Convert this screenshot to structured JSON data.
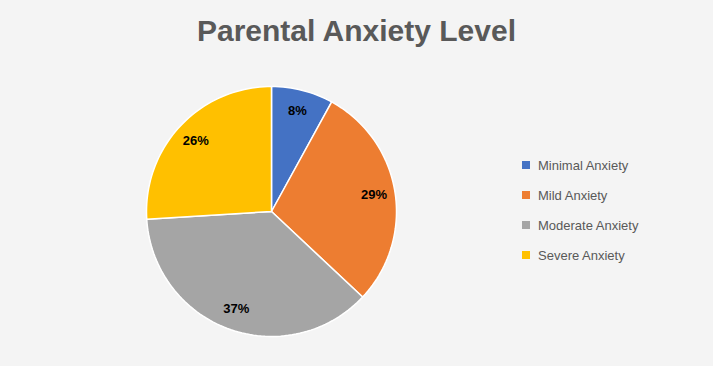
{
  "chart_data": {
    "type": "pie",
    "title": "Parental Anxiety Level",
    "categories": [
      "Minimal Anxiety",
      "Mild Anxiety",
      "Moderate Anxiety",
      "Severe Anxiety"
    ],
    "values": [
      8,
      29,
      37,
      26
    ],
    "value_labels": [
      "8%",
      "29%",
      "37%",
      "26%"
    ],
    "colors": [
      "#4472c4",
      "#ed7d31",
      "#a5a5a5",
      "#ffc000"
    ],
    "data_labels": true,
    "legend": "right"
  }
}
